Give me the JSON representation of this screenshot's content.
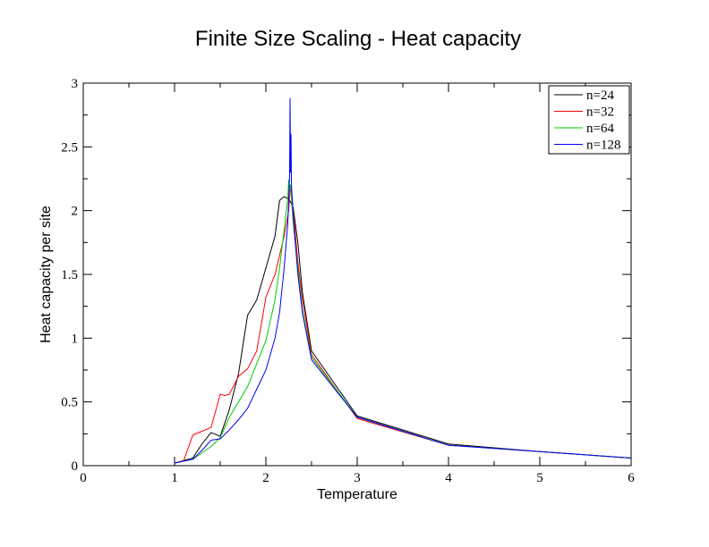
{
  "chart_data": {
    "type": "line",
    "title": "Finite Size Scaling - Heat capacity",
    "xlabel": "Temperature",
    "ylabel": "Heat capacity per site",
    "xlim": [
      0,
      6
    ],
    "ylim": [
      0,
      3
    ],
    "xticks": [
      0,
      1,
      2,
      3,
      4,
      5,
      6
    ],
    "yticks": [
      0,
      0.5,
      1,
      1.5,
      2,
      2.5,
      3
    ],
    "xtick_labels": [
      "0",
      "1",
      "2",
      "3",
      "4",
      "5",
      "6"
    ],
    "ytick_labels": [
      "0",
      "0.5",
      "1",
      "1.5",
      "2",
      "2.5",
      "3"
    ],
    "grid": false,
    "legend_position": "top-right",
    "series": [
      {
        "name": "n=24",
        "color": "#000000",
        "x": [
          1.0,
          1.2,
          1.3,
          1.4,
          1.5,
          1.6,
          1.7,
          1.8,
          1.9,
          2.0,
          2.1,
          2.15,
          2.2,
          2.25,
          2.269,
          2.3,
          2.35,
          2.4,
          2.5,
          3.0,
          4.0,
          5.0,
          6.0
        ],
        "y": [
          0.02,
          0.06,
          0.17,
          0.26,
          0.23,
          0.44,
          0.72,
          1.18,
          1.3,
          1.55,
          1.8,
          2.08,
          2.11,
          2.09,
          2.07,
          2.02,
          1.75,
          1.36,
          0.9,
          0.39,
          0.17,
          0.11,
          0.06
        ]
      },
      {
        "name": "n=32",
        "color": "#ff0000",
        "x": [
          1.0,
          1.1,
          1.2,
          1.3,
          1.4,
          1.5,
          1.55,
          1.6,
          1.7,
          1.8,
          1.9,
          2.0,
          2.1,
          2.2,
          2.25,
          2.269,
          2.28,
          2.3,
          2.35,
          2.4,
          2.5,
          3.0,
          4.0,
          5.0,
          6.0
        ],
        "y": [
          0.02,
          0.04,
          0.24,
          0.27,
          0.3,
          0.56,
          0.55,
          0.56,
          0.7,
          0.76,
          0.9,
          1.32,
          1.5,
          1.8,
          2.0,
          2.2,
          2.15,
          2.0,
          1.6,
          1.3,
          0.87,
          0.37,
          0.16,
          0.11,
          0.06
        ]
      },
      {
        "name": "n=64",
        "color": "#00cc00",
        "x": [
          1.0,
          1.2,
          1.3,
          1.4,
          1.5,
          1.6,
          1.7,
          1.8,
          1.9,
          2.0,
          2.1,
          2.15,
          2.2,
          2.24,
          2.25,
          2.26,
          2.269,
          2.28,
          2.3,
          2.35,
          2.4,
          2.5,
          3.0,
          4.0,
          5.0,
          6.0
        ],
        "y": [
          0.02,
          0.05,
          0.1,
          0.15,
          0.22,
          0.38,
          0.5,
          0.62,
          0.8,
          0.98,
          1.3,
          1.55,
          1.85,
          2.1,
          2.24,
          2.18,
          2.2,
          2.1,
          1.9,
          1.55,
          1.22,
          0.85,
          0.38,
          0.16,
          0.11,
          0.06
        ]
      },
      {
        "name": "n=128",
        "color": "#0000ff",
        "x": [
          1.0,
          1.2,
          1.3,
          1.4,
          1.5,
          1.6,
          1.7,
          1.8,
          1.9,
          2.0,
          2.1,
          2.15,
          2.2,
          2.24,
          2.26,
          2.265,
          2.27,
          2.275,
          2.28,
          2.3,
          2.35,
          2.4,
          2.5,
          3.0,
          4.0,
          5.0,
          6.0
        ],
        "y": [
          0.02,
          0.05,
          0.12,
          0.2,
          0.21,
          0.28,
          0.36,
          0.45,
          0.6,
          0.75,
          1.0,
          1.2,
          1.55,
          1.9,
          2.28,
          2.88,
          2.3,
          2.6,
          2.2,
          1.95,
          1.5,
          1.2,
          0.83,
          0.38,
          0.16,
          0.11,
          0.06
        ]
      }
    ]
  }
}
